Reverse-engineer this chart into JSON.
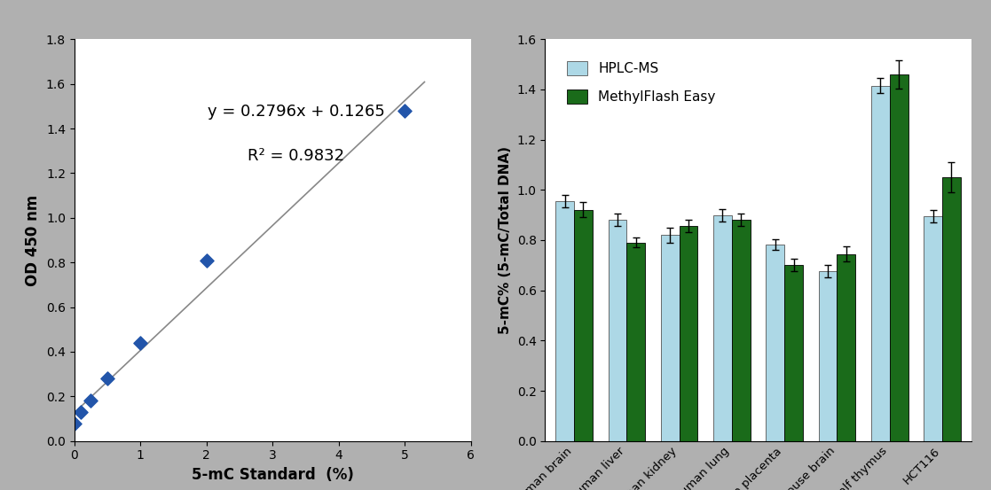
{
  "left_plot": {
    "scatter_x": [
      0,
      0.1,
      0.25,
      0.5,
      1.0,
      2.0,
      5.0
    ],
    "scatter_y": [
      0.08,
      0.13,
      0.18,
      0.28,
      0.44,
      0.81,
      1.48
    ],
    "line_x": [
      0,
      5.3
    ],
    "slope": 0.2796,
    "intercept": 0.1265,
    "equation": "y = 0.2796x + 0.1265",
    "r2": "R² = 0.9832",
    "xlabel": "5-mC Standard  (%)",
    "ylabel": "OD 450 nm",
    "xlim": [
      0,
      6
    ],
    "ylim": [
      0,
      1.8
    ],
    "xticks": [
      0,
      1,
      2,
      3,
      4,
      5,
      6
    ],
    "yticks": [
      0,
      0.2,
      0.4,
      0.6,
      0.8,
      1.0,
      1.2,
      1.4,
      1.6,
      1.8
    ],
    "marker_color": "#2255aa",
    "line_color": "#888888"
  },
  "right_plot": {
    "categories": [
      "Human brain",
      "Human liver",
      "Human kidney",
      "Human lung",
      "Human placenta",
      "Mouse brain",
      "Calf thymus",
      "HCT116"
    ],
    "hplc_values": [
      0.955,
      0.882,
      0.82,
      0.9,
      0.782,
      0.675,
      1.415,
      0.895
    ],
    "methyl_values": [
      0.92,
      0.79,
      0.855,
      0.88,
      0.7,
      0.745,
      1.46,
      1.05
    ],
    "hplc_errors": [
      0.025,
      0.025,
      0.03,
      0.025,
      0.02,
      0.025,
      0.03,
      0.025
    ],
    "methyl_errors": [
      0.03,
      0.02,
      0.025,
      0.025,
      0.025,
      0.03,
      0.055,
      0.06
    ],
    "hplc_color": "#add8e6",
    "methyl_color": "#1a6b1a",
    "ylabel": "5-mC% (5-mC/Total DNA)",
    "ylim": [
      0,
      1.6
    ],
    "yticks": [
      0,
      0.2,
      0.4,
      0.6,
      0.8,
      1.0,
      1.2,
      1.4,
      1.6
    ],
    "legend_labels": [
      "HPLC-MS",
      "MethylFlash Easy"
    ],
    "bar_width": 0.35
  },
  "background_color": "#b0b0b0",
  "panel_color": "#ffffff"
}
